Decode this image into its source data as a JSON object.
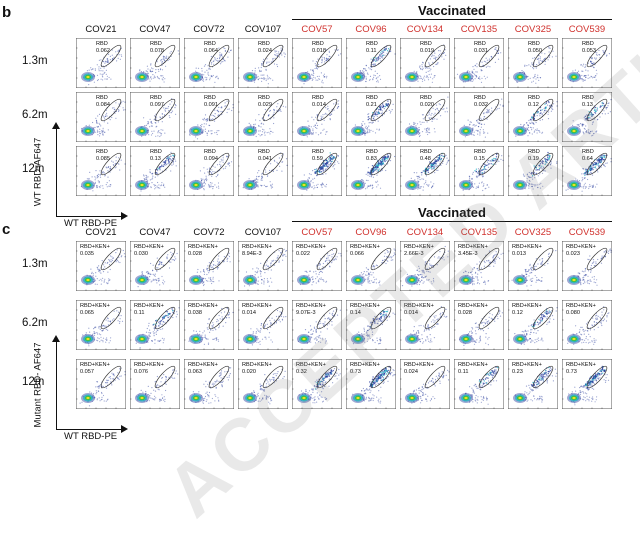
{
  "panel_b": {
    "letter": "b",
    "vaccinated_title": "Vaccinated",
    "columns": [
      {
        "label": "COV21",
        "vaccinated": false
      },
      {
        "label": "COV47",
        "vaccinated": false
      },
      {
        "label": "COV72",
        "vaccinated": false
      },
      {
        "label": "COV107",
        "vaccinated": false
      },
      {
        "label": "COV57",
        "vaccinated": true
      },
      {
        "label": "COV96",
        "vaccinated": true
      },
      {
        "label": "COV134",
        "vaccinated": true
      },
      {
        "label": "COV135",
        "vaccinated": true
      },
      {
        "label": "COV325",
        "vaccinated": true
      },
      {
        "label": "COV539",
        "vaccinated": true
      }
    ],
    "rows": [
      "1.3m",
      "6.2m",
      "12m"
    ],
    "gate_name": "RBD",
    "values": [
      [
        "0.062",
        "0.078",
        "0.064",
        "0.024",
        "0.018",
        "0.11",
        "0.019",
        "0.031",
        "0.050",
        "0.053"
      ],
      [
        "0.084",
        "0.097",
        "0.091",
        "0.029",
        "0.014",
        "0.21",
        "0.020",
        "0.032",
        "0.12",
        "0.13"
      ],
      [
        "0.085",
        "0.13",
        "0.094",
        "0.041",
        "0.59",
        "0.83",
        "0.48",
        "0.15",
        "0.19",
        "0.64"
      ]
    ],
    "y_axis_label": "WT RBD-AF647",
    "x_axis_label": "WT RBD-PE"
  },
  "panel_c": {
    "letter": "c",
    "vaccinated_title": "Vaccinated",
    "columns": [
      {
        "label": "COV21",
        "vaccinated": false
      },
      {
        "label": "COV47",
        "vaccinated": false
      },
      {
        "label": "COV72",
        "vaccinated": false
      },
      {
        "label": "COV107",
        "vaccinated": false
      },
      {
        "label": "COV57",
        "vaccinated": true
      },
      {
        "label": "COV96",
        "vaccinated": true
      },
      {
        "label": "COV134",
        "vaccinated": true
      },
      {
        "label": "COV135",
        "vaccinated": true
      },
      {
        "label": "COV325",
        "vaccinated": true
      },
      {
        "label": "COV539",
        "vaccinated": true
      }
    ],
    "rows": [
      "1.3m",
      "6.2m",
      "12m"
    ],
    "gate_name": "RBD+KEN+",
    "values": [
      [
        "0.035",
        "0.030",
        "0.028",
        "8.94E-3",
        "0.022",
        "0.066",
        "2.66E-3",
        "3.45E-3",
        "0.013",
        "0.023"
      ],
      [
        "0.065",
        "0.11",
        "0.038",
        "0.014",
        "9.07E-3",
        "0.14",
        "0.014",
        "0.028",
        "0.12",
        "0.080"
      ],
      [
        "0.057",
        "0.076",
        "0.063",
        "0.020",
        "0.32",
        "0.73",
        "0.024",
        "0.11",
        "0.23",
        "0.73"
      ]
    ],
    "y_axis_label": "Mutant RBD- AF647",
    "x_axis_label": "WT RBD-PE"
  },
  "colors": {
    "vaccinated_label": "#d0312d",
    "text": "#111111",
    "gate": "#333333",
    "density_low": "#2b3f9e",
    "density_mid": "#28b4c8",
    "density_high": "#3cc33c",
    "density_peak": "#f0e020"
  },
  "watermark_text": "ACCEPTED ARTICLE PREVIEW"
}
